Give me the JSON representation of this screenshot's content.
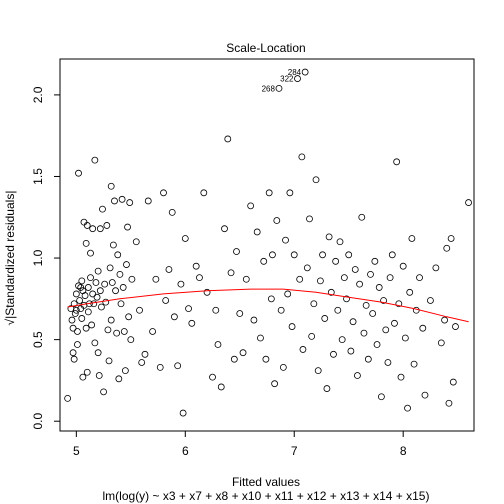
{
  "chart_data": {
    "type": "scatter",
    "title": "Scale-Location",
    "xlabel": "Fitted values",
    "xlabel_sub": "lm(log(y) ~ x3 + x7 + x8 + x10 + x11 + x12 + x13 + x14 + x15)",
    "ylabel": "√|Standardized residuals|",
    "xlim": [
      4.85,
      8.65
    ],
    "ylim": [
      -0.06,
      2.22
    ],
    "xticks": [
      5,
      6,
      7,
      8
    ],
    "yticks": [
      0.0,
      0.5,
      1.0,
      1.5,
      2.0
    ],
    "ytick_labels": [
      "0.0",
      "0.5",
      "1.0",
      "1.5",
      "2.0"
    ],
    "grid": false,
    "point_style": "open-circle",
    "labeled_points": [
      {
        "label": "284",
        "x": 7.1,
        "y": 2.14
      },
      {
        "label": "322",
        "x": 7.03,
        "y": 2.1
      },
      {
        "label": "268",
        "x": 6.86,
        "y": 2.04
      }
    ],
    "smoother": {
      "color": "#ff0000",
      "x": [
        4.92,
        5.1,
        5.4,
        5.8,
        6.2,
        6.6,
        6.9,
        7.2,
        7.5,
        7.8,
        8.1,
        8.4,
        8.6
      ],
      "y": [
        0.7,
        0.72,
        0.75,
        0.78,
        0.8,
        0.81,
        0.81,
        0.79,
        0.76,
        0.73,
        0.69,
        0.64,
        0.61
      ]
    },
    "points": [
      [
        4.92,
        0.14
      ],
      [
        4.95,
        0.69
      ],
      [
        4.96,
        0.62
      ],
      [
        4.97,
        0.57
      ],
      [
        4.97,
        0.42
      ],
      [
        4.98,
        0.38
      ],
      [
        4.98,
        0.72
      ],
      [
        4.99,
        0.66
      ],
      [
        5.0,
        0.68
      ],
      [
        5.0,
        0.78
      ],
      [
        5.01,
        0.47
      ],
      [
        5.01,
        0.55
      ],
      [
        5.02,
        0.83
      ],
      [
        5.02,
        1.52
      ],
      [
        5.03,
        0.74
      ],
      [
        5.04,
        0.82
      ],
      [
        5.04,
        0.69
      ],
      [
        5.05,
        0.63
      ],
      [
        5.05,
        0.86
      ],
      [
        5.06,
        0.8
      ],
      [
        5.06,
        0.27
      ],
      [
        5.07,
        1.22
      ],
      [
        5.07,
        0.71
      ],
      [
        5.08,
        0.77
      ],
      [
        5.09,
        0.57
      ],
      [
        5.09,
        1.09
      ],
      [
        5.1,
        0.3
      ],
      [
        5.1,
        1.2
      ],
      [
        5.11,
        0.82
      ],
      [
        5.11,
        0.67
      ],
      [
        5.12,
        0.72
      ],
      [
        5.13,
        0.88
      ],
      [
        5.13,
        1.03
      ],
      [
        5.14,
        0.59
      ],
      [
        5.15,
        0.78
      ],
      [
        5.15,
        1.18
      ],
      [
        5.16,
        0.72
      ],
      [
        5.17,
        1.6
      ],
      [
        5.17,
        0.48
      ],
      [
        5.18,
        0.85
      ],
      [
        5.19,
        0.76
      ],
      [
        5.2,
        0.92
      ],
      [
        5.2,
        0.42
      ],
      [
        5.21,
        0.28
      ],
      [
        5.22,
        1.18
      ],
      [
        5.22,
        0.8
      ],
      [
        5.23,
        0.7
      ],
      [
        5.24,
        1.3
      ],
      [
        5.25,
        0.18
      ],
      [
        5.26,
        0.84
      ],
      [
        5.27,
        0.73
      ],
      [
        5.28,
        1.2
      ],
      [
        5.29,
        0.56
      ],
      [
        5.3,
        0.37
      ],
      [
        5.31,
        0.94
      ],
      [
        5.32,
        1.44
      ],
      [
        5.32,
        0.62
      ],
      [
        5.33,
        0.85
      ],
      [
        5.34,
        1.08
      ],
      [
        5.35,
        1.35
      ],
      [
        5.36,
        0.8
      ],
      [
        5.37,
        0.54
      ],
      [
        5.38,
        1.02
      ],
      [
        5.39,
        0.26
      ],
      [
        5.4,
        0.9
      ],
      [
        5.41,
        0.72
      ],
      [
        5.42,
        1.36
      ],
      [
        5.43,
        0.82
      ],
      [
        5.44,
        0.55
      ],
      [
        5.45,
        0.31
      ],
      [
        5.46,
        0.96
      ],
      [
        5.47,
        1.19
      ],
      [
        5.48,
        0.64
      ],
      [
        5.49,
        1.34
      ],
      [
        5.5,
        0.5
      ],
      [
        5.51,
        0.87
      ],
      [
        5.55,
        1.1
      ],
      [
        5.58,
        0.68
      ],
      [
        5.6,
        0.36
      ],
      [
        5.63,
        0.41
      ],
      [
        5.66,
        1.35
      ],
      [
        5.7,
        0.55
      ],
      [
        5.73,
        0.87
      ],
      [
        5.77,
        0.33
      ],
      [
        5.8,
        1.4
      ],
      [
        5.82,
        0.74
      ],
      [
        5.85,
        0.93
      ],
      [
        5.88,
        1.28
      ],
      [
        5.9,
        0.64
      ],
      [
        5.93,
        0.34
      ],
      [
        5.96,
        0.84
      ],
      [
        5.98,
        0.05
      ],
      [
        6.0,
        1.12
      ],
      [
        6.03,
        0.69
      ],
      [
        6.06,
        0.6
      ],
      [
        6.1,
        0.95
      ],
      [
        6.13,
        0.88
      ],
      [
        6.17,
        1.4
      ],
      [
        6.2,
        0.79
      ],
      [
        6.25,
        0.27
      ],
      [
        6.28,
        0.68
      ],
      [
        6.3,
        0.47
      ],
      [
        6.33,
        0.21
      ],
      [
        6.36,
        1.18
      ],
      [
        6.39,
        1.73
      ],
      [
        6.42,
        0.91
      ],
      [
        6.45,
        0.38
      ],
      [
        6.47,
        1.04
      ],
      [
        6.5,
        0.66
      ],
      [
        6.53,
        0.42
      ],
      [
        6.56,
        0.87
      ],
      [
        6.6,
        1.32
      ],
      [
        6.63,
        0.62
      ],
      [
        6.66,
        1.16
      ],
      [
        6.69,
        0.51
      ],
      [
        6.72,
        0.98
      ],
      [
        6.74,
        0.38
      ],
      [
        6.77,
        1.4
      ],
      [
        6.79,
        0.75
      ],
      [
        6.8,
        1.02
      ],
      [
        6.82,
        0.23
      ],
      [
        6.84,
        1.23
      ],
      [
        6.86,
        2.04
      ],
      [
        6.88,
        0.68
      ],
      [
        6.9,
        0.33
      ],
      [
        6.92,
        1.11
      ],
      [
        6.94,
        0.78
      ],
      [
        6.96,
        1.4
      ],
      [
        6.98,
        0.58
      ],
      [
        7.0,
        1.02
      ],
      [
        7.03,
        2.1
      ],
      [
        7.05,
        0.87
      ],
      [
        7.07,
        1.62
      ],
      [
        7.08,
        0.44
      ],
      [
        7.1,
        2.14
      ],
      [
        7.12,
        0.94
      ],
      [
        7.14,
        1.24
      ],
      [
        7.16,
        0.52
      ],
      [
        7.18,
        0.72
      ],
      [
        7.2,
        1.48
      ],
      [
        7.22,
        0.31
      ],
      [
        7.24,
        0.86
      ],
      [
        7.26,
        1.02
      ],
      [
        7.28,
        0.63
      ],
      [
        7.3,
        0.2
      ],
      [
        7.32,
        1.13
      ],
      [
        7.34,
        0.79
      ],
      [
        7.36,
        0.41
      ],
      [
        7.38,
        0.98
      ],
      [
        7.4,
        0.68
      ],
      [
        7.42,
        1.1
      ],
      [
        7.44,
        0.5
      ],
      [
        7.46,
        0.88
      ],
      [
        7.48,
        0.75
      ],
      [
        7.5,
        1.02
      ],
      [
        7.52,
        0.43
      ],
      [
        7.54,
        0.61
      ],
      [
        7.56,
        0.93
      ],
      [
        7.58,
        0.28
      ],
      [
        7.6,
        0.84
      ],
      [
        7.62,
        1.25
      ],
      [
        7.64,
        0.54
      ],
      [
        7.66,
        0.71
      ],
      [
        7.68,
        0.38
      ],
      [
        7.7,
        0.9
      ],
      [
        7.72,
        0.66
      ],
      [
        7.74,
        0.98
      ],
      [
        7.76,
        0.47
      ],
      [
        7.78,
        0.82
      ],
      [
        7.8,
        0.15
      ],
      [
        7.82,
        0.74
      ],
      [
        7.84,
        0.56
      ],
      [
        7.86,
        0.36
      ],
      [
        7.88,
        0.88
      ],
      [
        7.9,
        1.02
      ],
      [
        7.92,
        0.6
      ],
      [
        7.94,
        1.59
      ],
      [
        7.96,
        0.72
      ],
      [
        7.98,
        0.27
      ],
      [
        8.0,
        0.95
      ],
      [
        8.02,
        0.51
      ],
      [
        8.04,
        0.08
      ],
      [
        8.06,
        0.79
      ],
      [
        8.08,
        1.12
      ],
      [
        8.1,
        0.35
      ],
      [
        8.12,
        0.68
      ],
      [
        8.15,
        0.88
      ],
      [
        8.18,
        0.57
      ],
      [
        8.2,
        0.16
      ],
      [
        8.25,
        0.74
      ],
      [
        8.3,
        0.94
      ],
      [
        8.35,
        0.48
      ],
      [
        8.38,
        0.62
      ],
      [
        8.4,
        1.06
      ],
      [
        8.42,
        0.11
      ],
      [
        8.44,
        1.12
      ],
      [
        8.46,
        0.24
      ],
      [
        8.48,
        0.58
      ],
      [
        8.6,
        1.34
      ]
    ]
  }
}
